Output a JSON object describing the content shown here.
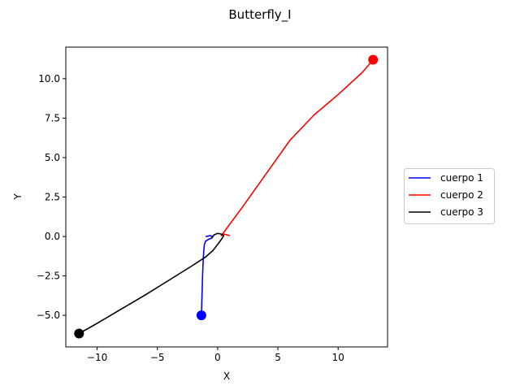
{
  "chart_data": {
    "type": "line",
    "title": "Butterfly_I",
    "xlabel": "X",
    "ylabel": "Y",
    "xlim": [
      -12.6,
      14.1
    ],
    "ylim": [
      -7.0,
      12.0
    ],
    "xticks": [
      -10,
      -5,
      0,
      5,
      10
    ],
    "yticks": [
      -5.0,
      -2.5,
      0.0,
      2.5,
      5.0,
      7.5,
      10.0
    ],
    "xtick_labels": [
      "−10",
      "−5",
      "0",
      "5",
      "10"
    ],
    "ytick_labels": [
      "−5.0",
      "−2.5",
      "0.0",
      "2.5",
      "5.0",
      "7.5",
      "10.0"
    ],
    "grid": false,
    "legend_position": "right",
    "series": [
      {
        "name": "cuerpo 1",
        "color": "#0000ff",
        "x": [
          -1.0,
          -0.6,
          -0.4,
          -0.5,
          -0.8,
          -1.0,
          -1.1,
          -1.15,
          -1.2,
          -1.25,
          -1.3,
          -1.35
        ],
        "y": [
          0.0,
          0.05,
          0.0,
          -0.1,
          -0.2,
          -0.3,
          -0.5,
          -0.9,
          -1.5,
          -2.5,
          -3.8,
          -5.0
        ],
        "end": [
          -1.35,
          -5.0
        ]
      },
      {
        "name": "cuerpo 2",
        "color": "#ff0000",
        "x": [
          1.0,
          0.8,
          0.5,
          0.3,
          2.0,
          4.0,
          6.0,
          8.0,
          10.0,
          12.0,
          12.9
        ],
        "y": [
          0.05,
          0.1,
          0.15,
          0.05,
          1.8,
          3.95,
          6.1,
          7.7,
          9.0,
          10.4,
          11.2
        ],
        "end": [
          12.9,
          11.2
        ]
      },
      {
        "name": "cuerpo 3",
        "color": "#000000",
        "x": [
          -0.5,
          -0.3,
          0.0,
          0.3,
          0.5,
          0.3,
          0.0,
          -0.4,
          -1.0,
          -2.0,
          -4.0,
          -6.0,
          -8.0,
          -10.0,
          -11.5
        ],
        "y": [
          -0.1,
          0.1,
          0.2,
          0.15,
          0.05,
          -0.2,
          -0.5,
          -0.9,
          -1.3,
          -1.8,
          -2.75,
          -3.7,
          -4.6,
          -5.5,
          -6.15
        ],
        "end": [
          -11.5,
          -6.15
        ]
      }
    ]
  }
}
